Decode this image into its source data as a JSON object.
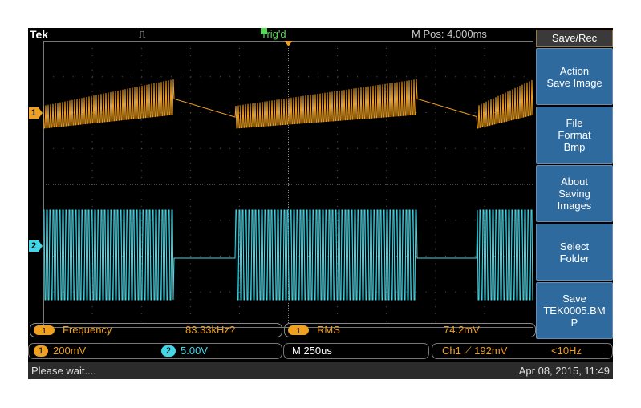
{
  "top": {
    "brand": "Tek",
    "trigger_icon": "⎍",
    "trigger_status": "Trig'd",
    "m_pos": "M Pos: 4.000ms"
  },
  "grid_labels": {
    "ch1": "1",
    "ch2": "2",
    "trig_marker": "T"
  },
  "measurements": [
    {
      "badge": "1",
      "name": "Frequency",
      "value": "83.33kHz?"
    },
    {
      "badge": "1",
      "name": "RMS",
      "value": "74.2mV"
    }
  ],
  "status": {
    "ch1_badge": "1",
    "ch1_scale": "200mV",
    "ch2_badge": "2",
    "ch2_scale": "5.00V",
    "timebase": "M 250us",
    "trigger": "Ch1 ⟋ 192mV",
    "trigger_freq": "<10Hz",
    "message": "Please wait....",
    "datetime": "Apr 08, 2015, 11:49"
  },
  "menu": {
    "title": "Save/Rec",
    "buttons": [
      {
        "line1": "Action",
        "line2": "Save Image",
        "line3": ""
      },
      {
        "line1": "File",
        "line2": "Format",
        "line3": "Bmp"
      },
      {
        "line1": "About",
        "line2": "Saving",
        "line3": "Images"
      },
      {
        "line1": "Select",
        "line2": "Folder",
        "line3": ""
      },
      {
        "line1": "Save",
        "line2": "TEK0005.BM",
        "line3": "P"
      }
    ]
  },
  "colors": {
    "ch1": "#f0a020",
    "ch2": "#40d8e8",
    "grid": "#5a5a5a",
    "menu_button": "#2f6a9e"
  },
  "waveforms": {
    "ch1": {
      "style": "bursty sawtooth ramp, oscillation during bursts, decaying ramp in gaps"
    },
    "ch2": {
      "style": "square-wave bursts with flat gaps"
    }
  }
}
